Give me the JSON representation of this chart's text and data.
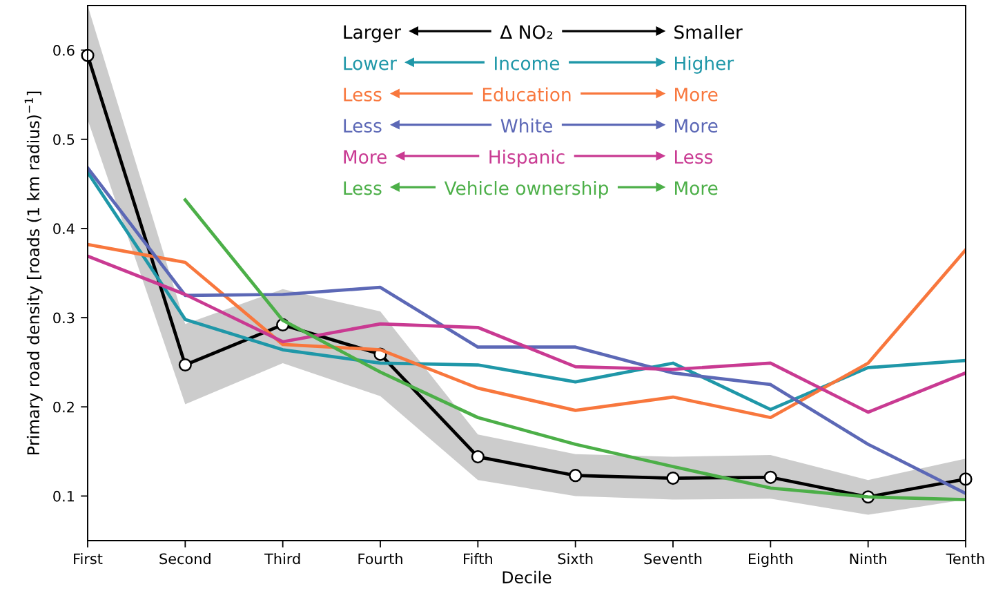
{
  "chart_data": {
    "type": "line",
    "xlabel": "Decile",
    "ylabel": "Primary road density [roads (1 km radius)$^{−1}$]",
    "categories": [
      "First",
      "Second",
      "Third",
      "Fourth",
      "Fifth",
      "Sixth",
      "Seventh",
      "Eighth",
      "Ninth",
      "Tenth"
    ],
    "ylim": [
      0.05,
      0.65
    ],
    "yticks": [
      0.1,
      0.2,
      0.3,
      0.4,
      0.5,
      0.6
    ],
    "grid": false,
    "legend": "top",
    "line_style": "solid",
    "series": [
      {
        "name": "Δ NO₂",
        "color": "#000000",
        "marker": "circle",
        "values": [
          0.594,
          0.247,
          0.292,
          0.259,
          0.144,
          0.123,
          0.12,
          0.121,
          0.099,
          0.119
        ],
        "lower": [
          0.522,
          0.203,
          0.249,
          0.212,
          0.118,
          0.1,
          0.096,
          0.097,
          0.079,
          0.096
        ],
        "upper": [
          0.65,
          0.293,
          0.332,
          0.307,
          0.169,
          0.147,
          0.144,
          0.146,
          0.118,
          0.142
        ]
      },
      {
        "name": "Income",
        "color": "#1f97a8",
        "values": [
          0.463,
          0.298,
          0.264,
          0.249,
          0.247,
          0.228,
          0.249,
          0.197,
          0.244,
          0.252
        ]
      },
      {
        "name": "Education",
        "color": "#f8773d",
        "values": [
          0.382,
          0.362,
          0.27,
          0.264,
          0.221,
          0.196,
          0.211,
          0.188,
          0.249,
          0.376
        ]
      },
      {
        "name": "White",
        "color": "#5c68b6",
        "values": [
          0.468,
          0.325,
          0.326,
          0.334,
          0.267,
          0.267,
          0.238,
          0.225,
          0.158,
          0.103
        ]
      },
      {
        "name": "Hispanic",
        "color": "#c93a92",
        "values": [
          0.369,
          0.326,
          0.273,
          0.293,
          0.289,
          0.245,
          0.242,
          0.249,
          0.194,
          0.238
        ]
      },
      {
        "name": "Vehicle ownership",
        "color": "#4caf48",
        "values": [
          null,
          0.432,
          0.297,
          0.239,
          0.188,
          0.158,
          0.133,
          0.109,
          0.099,
          0.096
        ]
      }
    ],
    "annotations": [
      "Larger",
      "Smaller",
      "Lower",
      "Higher",
      "Less",
      "More",
      "Less",
      "More",
      "More",
      "Less",
      "Less",
      "More"
    ]
  }
}
